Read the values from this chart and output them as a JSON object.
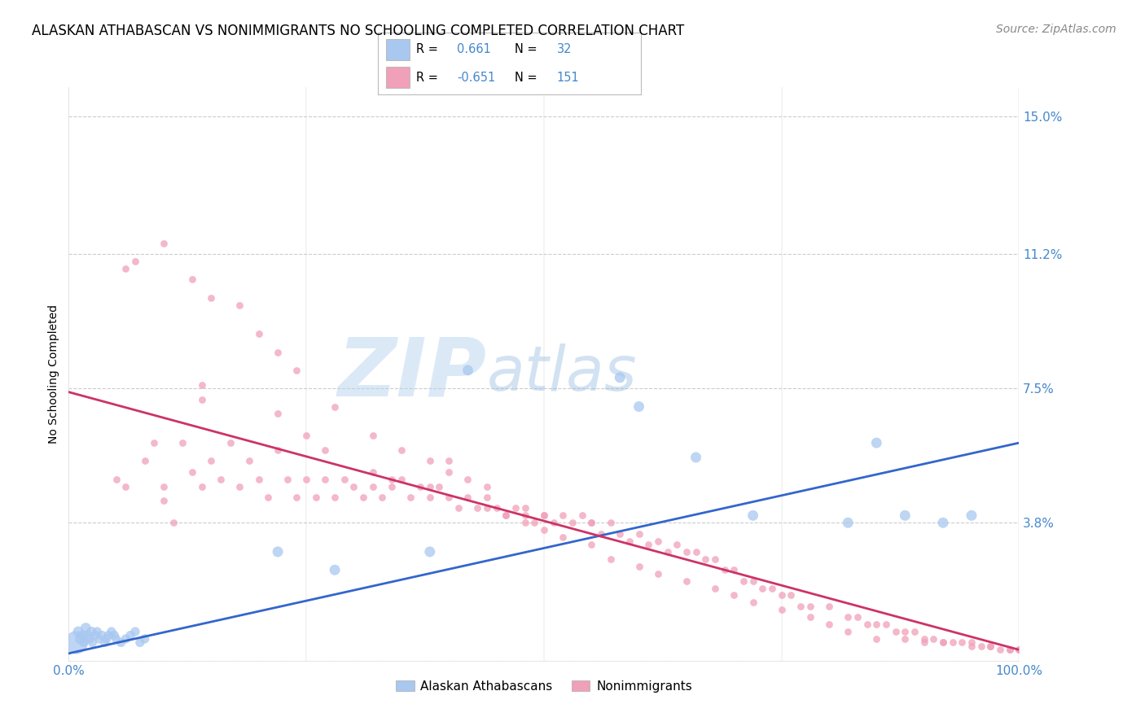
{
  "title": "ALASKAN ATHABASCAN VS NONIMMIGRANTS NO SCHOOLING COMPLETED CORRELATION CHART",
  "source": "Source: ZipAtlas.com",
  "ylabel": "No Schooling Completed",
  "yticks": [
    0.0,
    0.038,
    0.075,
    0.112,
    0.15
  ],
  "ytick_labels": [
    "",
    "3.8%",
    "7.5%",
    "11.2%",
    "15.0%"
  ],
  "xlim": [
    0.0,
    1.0
  ],
  "ylim": [
    0.0,
    0.158
  ],
  "watermark_zip": "ZIP",
  "watermark_atlas": "atlas",
  "blue_scatter_x": [
    0.008,
    0.01,
    0.012,
    0.015,
    0.016,
    0.018,
    0.02,
    0.022,
    0.024,
    0.025,
    0.028,
    0.03,
    0.032,
    0.035,
    0.038,
    0.04,
    0.042,
    0.045,
    0.048,
    0.05,
    0.055,
    0.06,
    0.065,
    0.07,
    0.075,
    0.08,
    0.22,
    0.28,
    0.38,
    0.42,
    0.58,
    0.6,
    0.66,
    0.72,
    0.82,
    0.85,
    0.88,
    0.92,
    0.95
  ],
  "blue_scatter_y": [
    0.005,
    0.008,
    0.006,
    0.007,
    0.005,
    0.009,
    0.007,
    0.006,
    0.008,
    0.005,
    0.007,
    0.008,
    0.006,
    0.007,
    0.005,
    0.006,
    0.007,
    0.008,
    0.007,
    0.006,
    0.005,
    0.006,
    0.007,
    0.008,
    0.005,
    0.006,
    0.03,
    0.025,
    0.03,
    0.08,
    0.078,
    0.07,
    0.056,
    0.04,
    0.038,
    0.06,
    0.04,
    0.038,
    0.04
  ],
  "blue_scatter_size": [
    400,
    80,
    80,
    70,
    60,
    80,
    70,
    60,
    70,
    60,
    60,
    60,
    60,
    60,
    60,
    60,
    60,
    60,
    60,
    60,
    60,
    60,
    60,
    60,
    60,
    60,
    80,
    80,
    80,
    80,
    80,
    80,
    80,
    80,
    80,
    80,
    80,
    80,
    80
  ],
  "pink_scatter_x": [
    0.05,
    0.06,
    0.08,
    0.09,
    0.1,
    0.1,
    0.11,
    0.12,
    0.13,
    0.14,
    0.15,
    0.16,
    0.17,
    0.18,
    0.19,
    0.2,
    0.21,
    0.22,
    0.23,
    0.24,
    0.25,
    0.26,
    0.27,
    0.28,
    0.29,
    0.3,
    0.31,
    0.32,
    0.33,
    0.34,
    0.35,
    0.36,
    0.37,
    0.38,
    0.39,
    0.4,
    0.41,
    0.42,
    0.43,
    0.44,
    0.45,
    0.46,
    0.47,
    0.48,
    0.49,
    0.5,
    0.51,
    0.52,
    0.53,
    0.54,
    0.55,
    0.56,
    0.57,
    0.58,
    0.59,
    0.6,
    0.61,
    0.62,
    0.63,
    0.64,
    0.65,
    0.66,
    0.67,
    0.68,
    0.69,
    0.7,
    0.71,
    0.72,
    0.73,
    0.74,
    0.75,
    0.76,
    0.77,
    0.78,
    0.8,
    0.82,
    0.83,
    0.84,
    0.85,
    0.86,
    0.87,
    0.88,
    0.89,
    0.9,
    0.91,
    0.92,
    0.93,
    0.94,
    0.95,
    0.96,
    0.97,
    0.98,
    0.99,
    1.0,
    0.07,
    0.1,
    0.13,
    0.15,
    0.18,
    0.2,
    0.22,
    0.24,
    0.28,
    0.32,
    0.35,
    0.38,
    0.4,
    0.42,
    0.44,
    0.48,
    0.5,
    0.55,
    0.14,
    0.22,
    0.25,
    0.27,
    0.32,
    0.34,
    0.38,
    0.44,
    0.46,
    0.48,
    0.5,
    0.52,
    0.55,
    0.57,
    0.6,
    0.62,
    0.65,
    0.68,
    0.7,
    0.72,
    0.75,
    0.78,
    0.8,
    0.82,
    0.85,
    0.88,
    0.9,
    0.92,
    0.95,
    0.97,
    0.99,
    1.0,
    0.06,
    0.14,
    0.4
  ],
  "pink_scatter_y": [
    0.05,
    0.048,
    0.055,
    0.06,
    0.048,
    0.044,
    0.038,
    0.06,
    0.052,
    0.048,
    0.055,
    0.05,
    0.06,
    0.048,
    0.055,
    0.05,
    0.045,
    0.058,
    0.05,
    0.045,
    0.05,
    0.045,
    0.05,
    0.045,
    0.05,
    0.048,
    0.045,
    0.048,
    0.045,
    0.048,
    0.05,
    0.045,
    0.048,
    0.045,
    0.048,
    0.045,
    0.042,
    0.045,
    0.042,
    0.045,
    0.042,
    0.04,
    0.042,
    0.04,
    0.038,
    0.04,
    0.038,
    0.04,
    0.038,
    0.04,
    0.038,
    0.035,
    0.038,
    0.035,
    0.033,
    0.035,
    0.032,
    0.033,
    0.03,
    0.032,
    0.03,
    0.03,
    0.028,
    0.028,
    0.025,
    0.025,
    0.022,
    0.022,
    0.02,
    0.02,
    0.018,
    0.018,
    0.015,
    0.015,
    0.015,
    0.012,
    0.012,
    0.01,
    0.01,
    0.01,
    0.008,
    0.008,
    0.008,
    0.006,
    0.006,
    0.005,
    0.005,
    0.005,
    0.005,
    0.004,
    0.004,
    0.003,
    0.003,
    0.003,
    0.11,
    0.115,
    0.105,
    0.1,
    0.098,
    0.09,
    0.085,
    0.08,
    0.07,
    0.062,
    0.058,
    0.055,
    0.052,
    0.05,
    0.048,
    0.042,
    0.04,
    0.038,
    0.072,
    0.068,
    0.062,
    0.058,
    0.052,
    0.05,
    0.048,
    0.042,
    0.04,
    0.038,
    0.036,
    0.034,
    0.032,
    0.028,
    0.026,
    0.024,
    0.022,
    0.02,
    0.018,
    0.016,
    0.014,
    0.012,
    0.01,
    0.008,
    0.006,
    0.006,
    0.005,
    0.005,
    0.004,
    0.004,
    0.003,
    0.003,
    0.108,
    0.076,
    0.055
  ],
  "blue_line_x": [
    0.0,
    1.0
  ],
  "blue_line_y": [
    0.002,
    0.06
  ],
  "pink_line_x": [
    0.0,
    1.0
  ],
  "pink_line_y": [
    0.074,
    0.003
  ],
  "blue_color": "#a8c8f0",
  "pink_color": "#f0a0b8",
  "blue_line_color": "#3366cc",
  "pink_line_color": "#cc3366",
  "background_color": "#ffffff",
  "grid_color": "#cccccc",
  "title_fontsize": 12,
  "source_fontsize": 10,
  "axis_label_fontsize": 10,
  "tick_fontsize": 11,
  "tick_color": "#4488cc",
  "legend_blue_text": [
    "R = ",
    " 0.661",
    "  N = ",
    " 32"
  ],
  "legend_pink_text": [
    "R = ",
    "-0.651",
    "  N = ",
    "151"
  ],
  "legend_label_blue": "Alaskan Athabascans",
  "legend_label_pink": "Nonimmigrants"
}
